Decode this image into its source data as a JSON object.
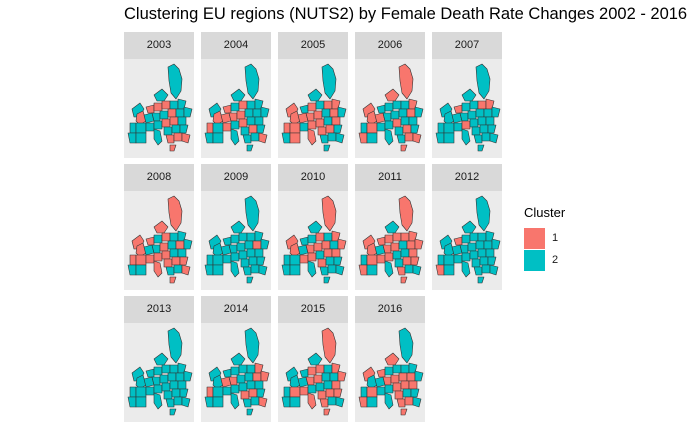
{
  "title": "Clustering EU regions (NUTS2) by Female Death Rate Changes 2002 - 2016",
  "legend": {
    "title": "Cluster",
    "items": [
      {
        "label": "1",
        "color": "#F8766D"
      },
      {
        "label": "2",
        "color": "#00BFC4"
      }
    ]
  },
  "colors": {
    "cluster_1": "#F8766D",
    "cluster_2": "#00BFC4",
    "panel_bg": "#EBEBEB",
    "strip_bg": "#D9D9D9",
    "border": "#333333"
  },
  "facets": [
    {
      "year": "2003",
      "cluster_1_share": 0.45
    },
    {
      "year": "2004",
      "cluster_1_share": 0.45
    },
    {
      "year": "2005",
      "cluster_1_share": 0.4
    },
    {
      "year": "2006",
      "cluster_1_share": 0.4
    },
    {
      "year": "2007",
      "cluster_1_share": 0.15
    },
    {
      "year": "2008",
      "cluster_1_share": 0.55
    },
    {
      "year": "2009",
      "cluster_1_share": 0.02
    },
    {
      "year": "2010",
      "cluster_1_share": 0.45
    },
    {
      "year": "2011",
      "cluster_1_share": 0.6
    },
    {
      "year": "2012",
      "cluster_1_share": 0.02
    },
    {
      "year": "2013",
      "cluster_1_share": 0.03
    },
    {
      "year": "2014",
      "cluster_1_share": 0.35
    },
    {
      "year": "2015",
      "cluster_1_share": 0.55
    },
    {
      "year": "2016",
      "cluster_1_share": 0.4
    }
  ]
}
